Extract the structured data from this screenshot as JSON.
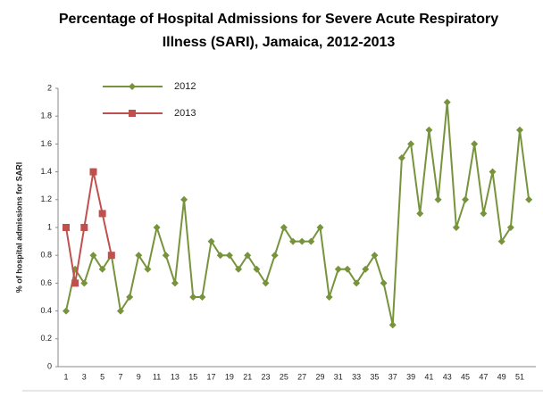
{
  "chart_data": {
    "type": "line",
    "title": "Percentage of Hospital Admissions for Severe Acute Respiratory Illness (SARI), Jamaica, 2012-2013",
    "y_label": "% of hospital admissions  for SARI",
    "categories": [
      "1",
      null,
      "3",
      null,
      "5",
      null,
      "7",
      null,
      "9",
      null,
      "11",
      null,
      "13",
      null,
      "15",
      null,
      "17",
      null,
      "19",
      null,
      "21",
      null,
      "23",
      null,
      "25",
      null,
      "27",
      null,
      "29",
      null,
      "31",
      null,
      "33",
      null,
      "35",
      null,
      "37",
      null,
      "39",
      null,
      "41",
      null,
      "43",
      null,
      "45",
      null,
      "47",
      null,
      "49",
      null,
      "51",
      null
    ],
    "series": [
      {
        "name": "2012",
        "color": "#77933c",
        "marker": "diamond",
        "values": [
          0.4,
          0.7,
          0.6,
          0.8,
          0.7,
          0.8,
          0.4,
          0.5,
          0.8,
          0.7,
          1.0,
          0.8,
          0.6,
          1.2,
          0.5,
          0.5,
          0.9,
          0.8,
          0.8,
          0.7,
          0.8,
          0.7,
          0.6,
          0.8,
          1.0,
          0.9,
          0.9,
          0.9,
          1.0,
          0.5,
          0.7,
          0.7,
          0.6,
          0.7,
          0.8,
          0.6,
          0.3,
          1.5,
          1.6,
          1.1,
          1.7,
          1.2,
          1.9,
          1.0,
          1.2,
          1.6,
          1.1,
          1.4,
          0.9,
          1.0,
          1.7,
          1.2
        ]
      },
      {
        "name": "2013",
        "color": "#c0504d",
        "marker": "square",
        "values": [
          1.0,
          0.6,
          1.0,
          1.4,
          1.1,
          0.8,
          null,
          null,
          null,
          null,
          null,
          null,
          null,
          null,
          null,
          null,
          null,
          null,
          null,
          null,
          null,
          null,
          null,
          null,
          null,
          null,
          null,
          null,
          null,
          null,
          null,
          null,
          null,
          null,
          null,
          null,
          null,
          null,
          null,
          null,
          null,
          null,
          null,
          null,
          null,
          null,
          null,
          null,
          null,
          null,
          null,
          null
        ]
      }
    ],
    "ylim": [
      0,
      2
    ],
    "yticks": [
      0,
      0.2,
      0.4,
      0.6,
      0.8,
      1,
      1.2,
      1.4,
      1.6,
      1.8,
      2
    ],
    "grid": false
  }
}
